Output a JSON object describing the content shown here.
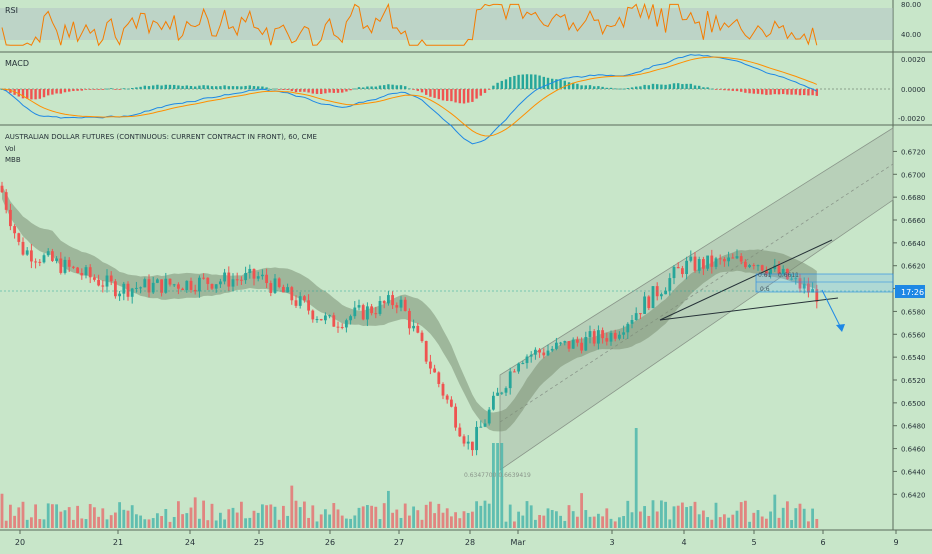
{
  "colors": {
    "background": "#c8e6c9",
    "up": "#26a69a",
    "down": "#ef5350",
    "up_vol": "#4db6ac",
    "down_vol": "#e57373",
    "rsi_line": "#f57c00",
    "rsi_band": "#b0bec5",
    "macd_line": "#1e88e5",
    "signal_line": "#ff8f00",
    "bb_fill": "#7b8f74",
    "channel": "#9aa69a",
    "trendline": "#263238",
    "price_label_bg": "#1e88e5",
    "text": "#263238"
  },
  "rsi": {
    "title": "RSI",
    "levels": [
      "80.00",
      "40.00"
    ]
  },
  "macd": {
    "title": "MACD",
    "levels": [
      "0.0020",
      "0.0000",
      "-0.0020"
    ]
  },
  "main": {
    "title": "AUSTRALIAN DOLLAR FUTURES (CONTINUOUS: CURRENT CONTRACT IN FRONT), 60, CME",
    "indicators": [
      "Vol",
      "MBB"
    ],
    "price_labels": [
      "0.6720",
      "0.6700",
      "0.6680",
      "0.6660",
      "0.6640",
      "0.6620",
      "0.6600",
      "0.6580",
      "0.6560",
      "0.6540",
      "0.6520",
      "0.6500",
      "0.6480",
      "0.6460",
      "0.6440",
      "0.6420"
    ],
    "current_label": "17:26",
    "low_annotation": "0.6347700 0.6639419",
    "fib_labels": [
      "0.61",
      "0.6611",
      "0.6"
    ]
  },
  "x_axis": {
    "labels": [
      "20",
      "21",
      "24",
      "25",
      "26",
      "27",
      "28",
      "Mar",
      "3",
      "4",
      "5",
      "6",
      "9"
    ]
  },
  "chart_data": {
    "type": "candlestick",
    "ylim": [
      0.6415,
      0.673
    ],
    "key_prices": [
      {
        "date": "19",
        "value": 0.669
      },
      {
        "date": "20",
        "value": 0.6635
      },
      {
        "date": "21",
        "value": 0.66
      },
      {
        "date": "24",
        "value": 0.6605
      },
      {
        "date": "25",
        "value": 0.661
      },
      {
        "date": "26",
        "value": 0.657
      },
      {
        "date": "27",
        "value": 0.659
      },
      {
        "date": "28",
        "value": 0.646
      },
      {
        "date": "Mar",
        "value": 0.654
      },
      {
        "date": "3",
        "value": 0.656
      },
      {
        "date": "4",
        "value": 0.662
      },
      {
        "date": "5",
        "value": 0.6625
      },
      {
        "date": "5.8",
        "value": 0.6595
      }
    ],
    "rsi_range": [
      30,
      80
    ],
    "macd_range": [
      -0.0022,
      0.0022
    ]
  }
}
